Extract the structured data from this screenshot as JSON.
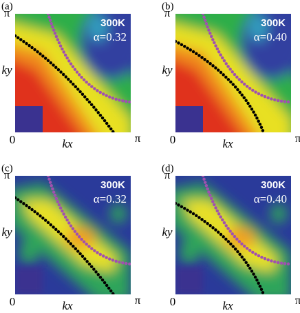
{
  "panels": [
    {
      "label": "(a)",
      "temperature": "300K",
      "alpha": "α=0.32",
      "x_label": "kx",
      "y_label": "ky",
      "origin": "0",
      "x_end": "π",
      "y_end": "π"
    },
    {
      "label": "(b)",
      "temperature": "300K",
      "alpha": "α=0.40",
      "x_label": "kx",
      "y_label": "ky",
      "origin": "0",
      "x_end": "π",
      "y_end": "π"
    },
    {
      "label": "(c)",
      "temperature": "300K",
      "alpha": "α=0.32",
      "x_label": "kx",
      "y_label": "ky",
      "origin": "0",
      "x_end": "π",
      "y_end": "π"
    },
    {
      "label": "(d)",
      "temperature": "300K",
      "alpha": "α=0.40",
      "x_label": "kx",
      "y_label": "ky",
      "origin": "0",
      "x_end": "π",
      "y_end": "π"
    }
  ]
}
